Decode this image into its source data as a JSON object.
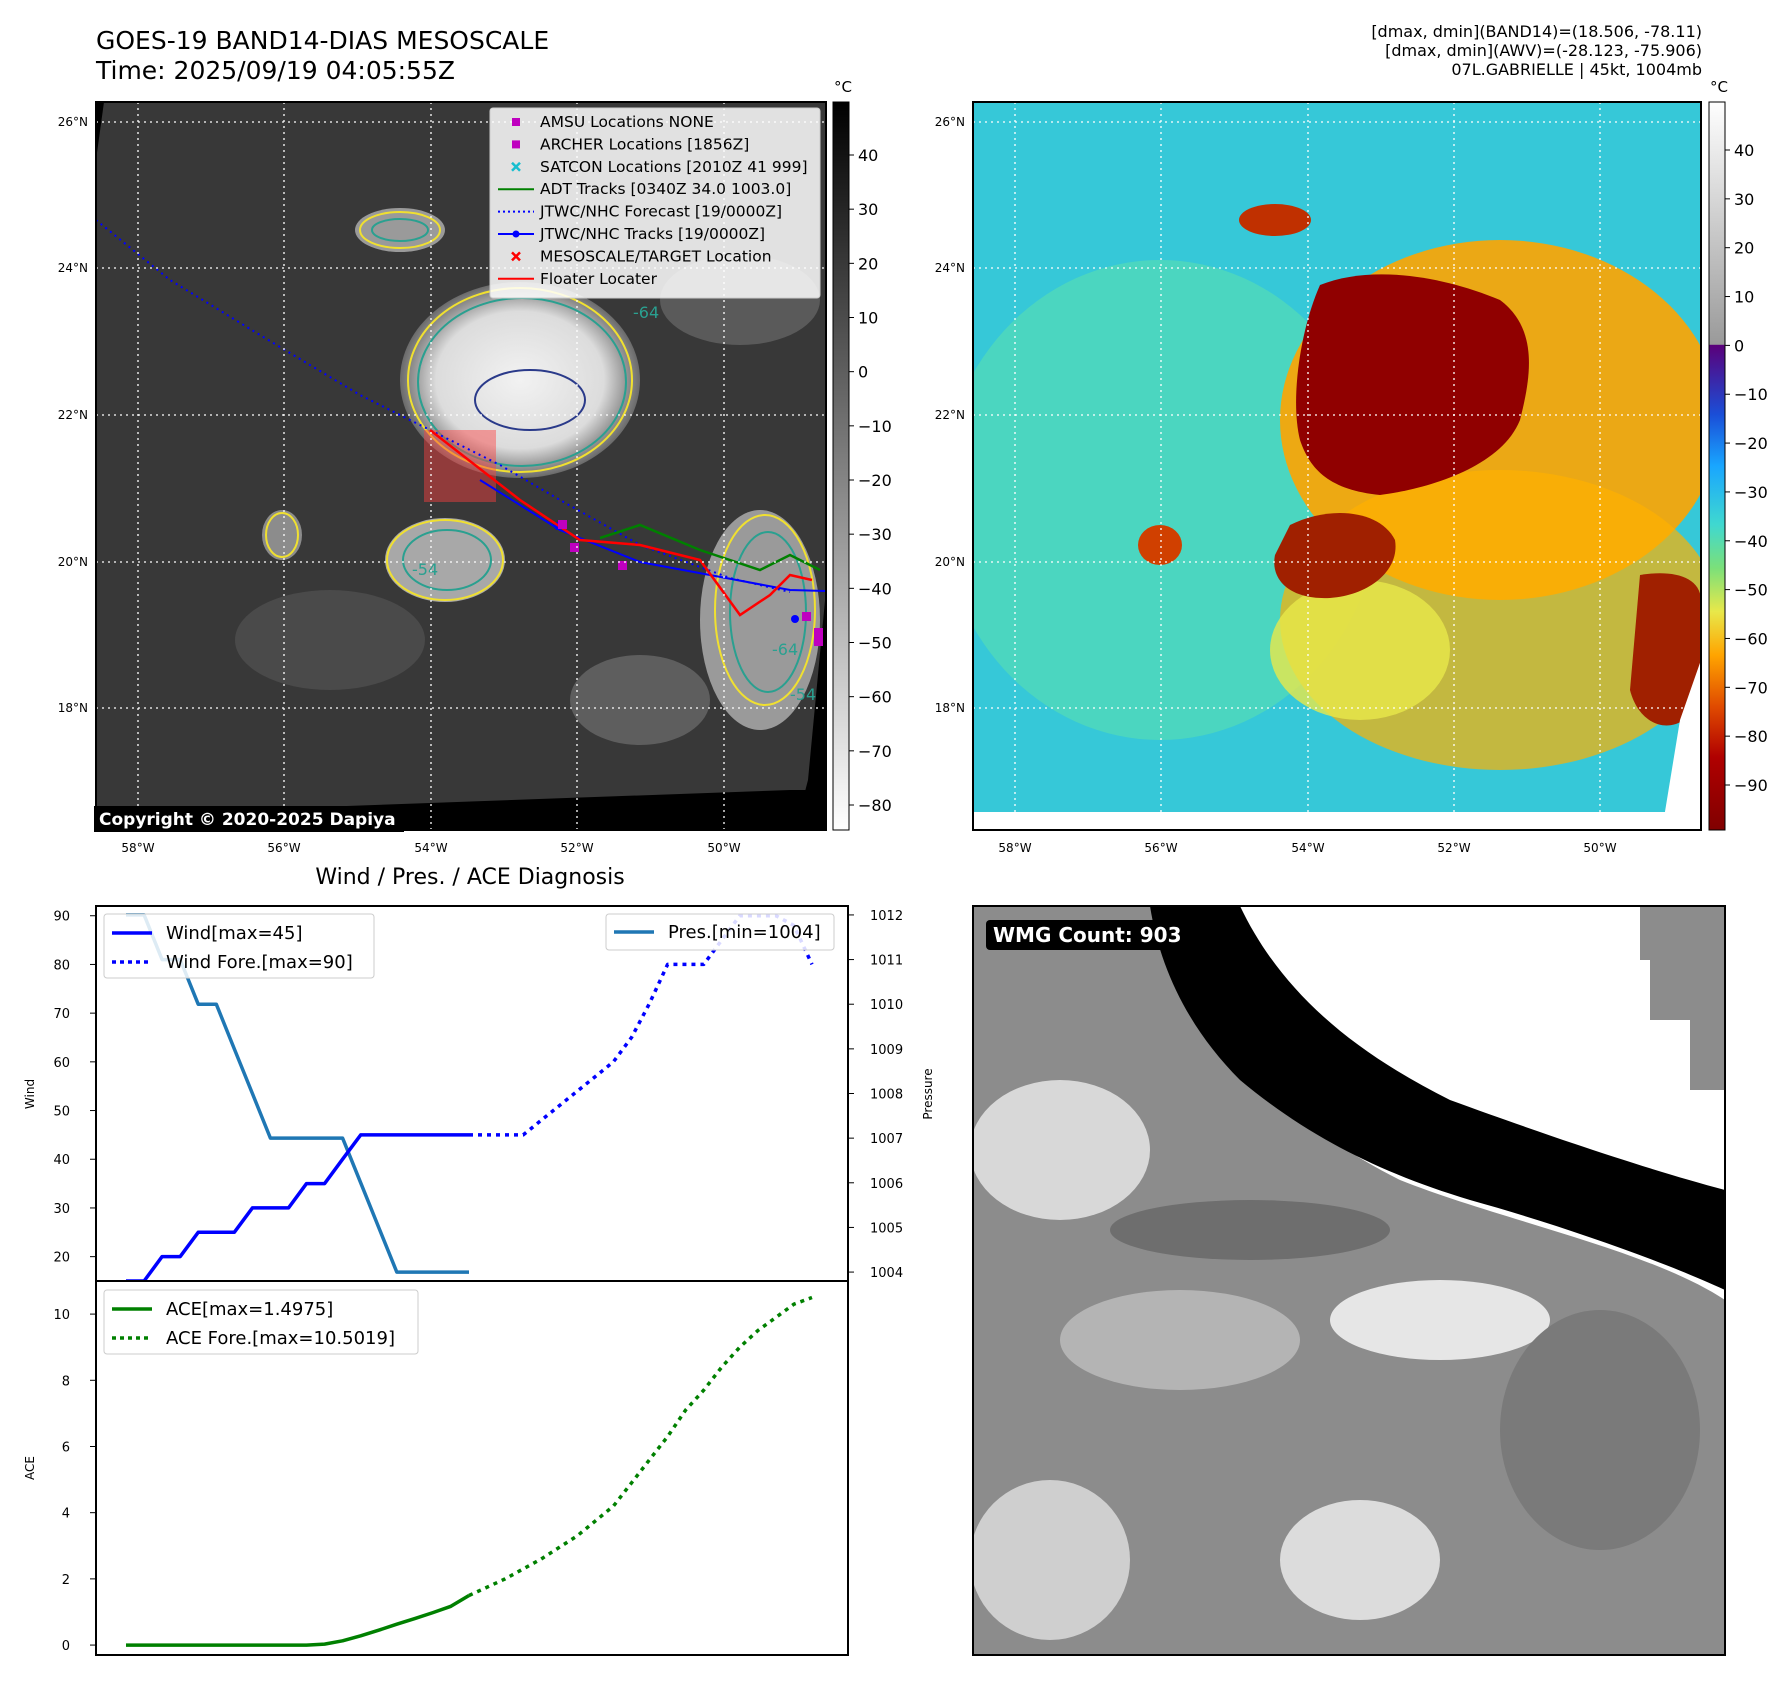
{
  "header": {
    "title": "GOES-19 BAND14-DIAS MESOSCALE",
    "time": "Time: 2025/09/19 04:05:55Z",
    "stats": [
      "[dmax, dmin](BAND14)=(18.506, -78.11)",
      "[dmax, dmin](AWV)=(-28.123, -75.906)",
      "07L.GABRIELLE | 45kt, 1004mb"
    ]
  },
  "ir_map": {
    "lat_labels": [
      "26°N",
      "24°N",
      "22°N",
      "20°N",
      "18°N"
    ],
    "lon_labels": [
      "58°W",
      "56°W",
      "54°W",
      "52°W",
      "50°W"
    ],
    "copyright": "Copyright © 2020-2025 Dapiya",
    "contour_labels": [
      "-64",
      "-54",
      "-64",
      "-54",
      "-64",
      "-54"
    ],
    "legend": [
      {
        "label": "AMSU Locations NONE",
        "color": "#bf00bf",
        "marker": "square"
      },
      {
        "label": "ARCHER Locations [1856Z]",
        "color": "#bf00bf",
        "marker": "square"
      },
      {
        "label": "SATCON Locations [2010Z 41 999]",
        "color": "#17becf",
        "marker": "x"
      },
      {
        "label": "ADT Tracks [0340Z 34.0 1003.0]",
        "color": "#008000",
        "marker": "line"
      },
      {
        "label": "JTWC/NHC Forecast [19/0000Z]",
        "color": "#0000ff",
        "marker": "dotted"
      },
      {
        "label": "JTWC/NHC Tracks [19/0000Z]",
        "color": "#0000ff",
        "marker": "line-dot"
      },
      {
        "label": "MESOSCALE/TARGET Location",
        "color": "#ff0000",
        "marker": "x"
      },
      {
        "label": "Floater Locater",
        "color": "#ff0000",
        "marker": "line"
      }
    ],
    "colorbar": {
      "unit": "°C",
      "ticks": [
        "40",
        "30",
        "20",
        "10",
        "0",
        "−10",
        "−20",
        "−30",
        "−40",
        "−50",
        "−60",
        "−70",
        "−80"
      ]
    }
  },
  "awv_map": {
    "lat_labels": [
      "26°N",
      "24°N",
      "22°N",
      "20°N",
      "18°N"
    ],
    "lon_labels": [
      "58°W",
      "56°W",
      "54°W",
      "52°W",
      "50°W"
    ],
    "colorbar": {
      "unit": "°C",
      "ticks": [
        "40",
        "30",
        "20",
        "10",
        "0",
        "−10",
        "−20",
        "−30",
        "−40",
        "−50",
        "−60",
        "−70",
        "−80",
        "−90"
      ]
    }
  },
  "wmg": {
    "label": "WMG Count: 903"
  },
  "diagnosis": {
    "title": "Wind / Pres. / ACE Diagnosis",
    "wind_axis_label": "Wind",
    "pres_axis_label": "Pressure",
    "ace_axis_label": "ACE",
    "wind_ticks": [
      "90",
      "80",
      "70",
      "60",
      "50",
      "40",
      "30",
      "20"
    ],
    "pres_ticks": [
      "1012",
      "1011",
      "1010",
      "1009",
      "1008",
      "1007",
      "1006",
      "1005",
      "1004"
    ],
    "ace_ticks": [
      "10",
      "8",
      "6",
      "4",
      "2",
      "0"
    ],
    "legend_wind": "Wind[max=45]",
    "legend_wind_fore": "Wind Fore.[max=90]",
    "legend_pres": "Pres.[min=1004]",
    "legend_ace": "ACE[max=1.4975]",
    "legend_ace_fore": "ACE Fore.[max=10.5019]"
  },
  "chart_data": [
    {
      "type": "line",
      "title": "Wind / Pres. / ACE Diagnosis",
      "ylabel": "Wind",
      "ylim": [
        15,
        92
      ],
      "series": [
        {
          "name": "Wind[max=45]",
          "color": "#0000ff",
          "style": "solid",
          "x": [
            0,
            1,
            2,
            3,
            4,
            5,
            6,
            7,
            8,
            9,
            10,
            11,
            12,
            13,
            14,
            15,
            16,
            17,
            18,
            19
          ],
          "y": [
            15,
            15,
            20,
            20,
            25,
            25,
            25,
            30,
            30,
            30,
            35,
            35,
            40,
            45,
            45,
            45,
            45,
            45,
            45,
            45
          ]
        },
        {
          "name": "Wind Fore.[max=90]",
          "color": "#0000ff",
          "style": "dotted",
          "x": [
            19,
            20,
            21,
            22,
            23,
            24,
            25,
            26,
            27,
            28,
            29,
            30,
            31,
            32,
            33,
            34,
            35,
            36,
            37,
            38
          ],
          "y": [
            45,
            45,
            45,
            45,
            48,
            51,
            54,
            57,
            60,
            65,
            72,
            80,
            80,
            80,
            85,
            90,
            90,
            90,
            88,
            80
          ]
        }
      ]
    },
    {
      "type": "line",
      "ylabel": "Pressure",
      "ylim": [
        1003.8,
        1012.2
      ],
      "series": [
        {
          "name": "Pres.[min=1004]",
          "color": "#1f77b4",
          "style": "solid",
          "x": [
            0,
            1,
            2,
            3,
            4,
            5,
            6,
            7,
            8,
            9,
            10,
            11,
            12,
            13,
            14,
            15,
            16,
            17,
            18,
            19
          ],
          "y": [
            1012,
            1012,
            1011,
            1011,
            1010,
            1010,
            1009,
            1008,
            1007,
            1007,
            1007,
            1007,
            1007,
            1006,
            1005,
            1004,
            1004,
            1004,
            1004,
            1004
          ]
        }
      ]
    },
    {
      "type": "line",
      "ylabel": "ACE",
      "ylim": [
        -0.3,
        11
      ],
      "series": [
        {
          "name": "ACE[max=1.4975]",
          "color": "#008000",
          "style": "solid",
          "x": [
            0,
            2,
            4,
            6,
            8,
            9,
            10,
            11,
            12,
            13,
            14,
            15,
            16,
            17,
            18,
            19
          ],
          "y": [
            0,
            0,
            0,
            0,
            0,
            0,
            0,
            0.03,
            0.13,
            0.28,
            0.45,
            0.63,
            0.8,
            0.98,
            1.17,
            1.4975
          ]
        },
        {
          "name": "ACE Fore.[max=10.5019]",
          "color": "#008000",
          "style": "dotted",
          "x": [
            19,
            21,
            23,
            25,
            27,
            28,
            29,
            30,
            31,
            32,
            33,
            34,
            35,
            36,
            37,
            38
          ],
          "y": [
            1.4975,
            2.0,
            2.6,
            3.3,
            4.2,
            4.9,
            5.6,
            6.3,
            7.1,
            7.7,
            8.4,
            9.0,
            9.5,
            9.9,
            10.3,
            10.5019
          ]
        }
      ]
    }
  ]
}
